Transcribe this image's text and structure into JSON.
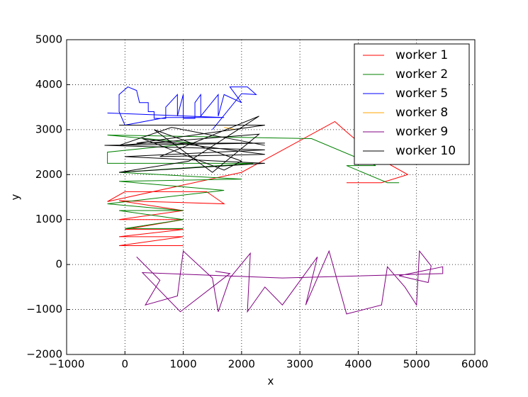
{
  "chart_data": {
    "type": "line",
    "xlabel": "x",
    "ylabel": "y",
    "xlim": [
      -1000,
      6000
    ],
    "ylim": [
      -2000,
      5000
    ],
    "xticks": [
      {
        "value": -1000,
        "label": "−1000"
      },
      0,
      1000,
      2000,
      3000,
      4000,
      5000,
      6000
    ],
    "yticks": [
      {
        "value": -2000,
        "label": "−2000"
      },
      {
        "value": -1000,
        "label": "−1000"
      },
      0,
      1000,
      2000,
      3000,
      4000,
      5000
    ],
    "grid": true,
    "legend": "upper right",
    "series": [
      {
        "name": "worker 1",
        "color": "#ff0000",
        "x": [
          1000,
          -100,
          1000,
          -100,
          1000,
          0,
          1000,
          -100,
          1000,
          -100,
          1700,
          1400,
          0,
          -300,
          2000,
          3600,
          3800,
          4300,
          4850,
          4400,
          3800
        ],
        "values": [
          420,
          420,
          620,
          620,
          780,
          780,
          1000,
          1000,
          1200,
          1420,
          1350,
          1620,
          1620,
          1400,
          2050,
          3180,
          2950,
          2400,
          2000,
          1820,
          1820
        ]
      },
      {
        "name": "worker 2",
        "color": "#008000",
        "x": [
          4700,
          4500,
          3800,
          4300,
          3200,
          -300,
          1200,
          -300,
          -300,
          2200,
          -100,
          2000,
          -100,
          1700,
          -300,
          1000,
          -100,
          1000,
          0,
          1000
        ],
        "values": [
          1820,
          1820,
          2200,
          2200,
          2800,
          2880,
          2700,
          2500,
          2250,
          2250,
          2050,
          1900,
          1850,
          1650,
          1350,
          1200,
          1200,
          1000,
          800,
          800
        ]
      },
      {
        "name": "worker 5",
        "color": "#0000ff",
        "x": [
          -300,
          1700,
          700,
          0,
          -100,
          -100,
          50,
          200,
          250,
          400,
          400,
          500,
          500,
          700,
          700,
          900,
          900,
          1000,
          1000,
          1200,
          1200,
          1300,
          1300,
          1600,
          1600,
          1700,
          2000,
          1800,
          2100,
          2250,
          2000,
          1500
        ],
        "values": [
          3370,
          3270,
          3270,
          3100,
          3400,
          3780,
          3950,
          3870,
          3600,
          3600,
          3400,
          3400,
          3250,
          3250,
          3500,
          3780,
          3300,
          3780,
          3250,
          3250,
          3600,
          3780,
          3300,
          3780,
          3300,
          3780,
          3600,
          3950,
          3950,
          3780,
          3800,
          3000
        ]
      },
      {
        "name": "worker 8",
        "color": "#ffa500",
        "x": [
          1700,
          1900
        ],
        "values": [
          3050,
          3000
        ]
      },
      {
        "name": "worker 9",
        "color": "#800080",
        "x": [
          200,
          600,
          350,
          900,
          1000,
          1500,
          1600,
          1800,
          2150,
          2100,
          2400,
          2700,
          3300,
          3100,
          3500,
          3800,
          4400,
          4500,
          4800,
          5000,
          5050,
          5250,
          5200,
          4700,
          5450,
          5450,
          2700,
          300,
          950,
          1800,
          1550
        ],
        "values": [
          170,
          -350,
          -900,
          -700,
          300,
          -300,
          -1050,
          -300,
          250,
          -1050,
          -500,
          -900,
          170,
          -900,
          300,
          -1100,
          -900,
          -50,
          -500,
          -900,
          300,
          -30,
          -400,
          -250,
          -50,
          -200,
          -300,
          -180,
          -1050,
          -200,
          -150
        ]
      },
      {
        "name": "worker 10",
        "color": "#000000",
        "x": [
          -100,
          2400,
          200,
          2400,
          -350,
          2400,
          0,
          2400,
          -100,
          1100,
          2300,
          600,
          2400,
          300,
          1700,
          2000,
          500,
          1500,
          2300,
          -100,
          800,
          2400
        ],
        "values": [
          3100,
          3100,
          2700,
          2700,
          2650,
          2550,
          2400,
          2250,
          2050,
          2300,
          3300,
          2400,
          2450,
          2800,
          2100,
          2300,
          3000,
          2050,
          2900,
          2650,
          3050,
          2650
        ]
      }
    ]
  }
}
